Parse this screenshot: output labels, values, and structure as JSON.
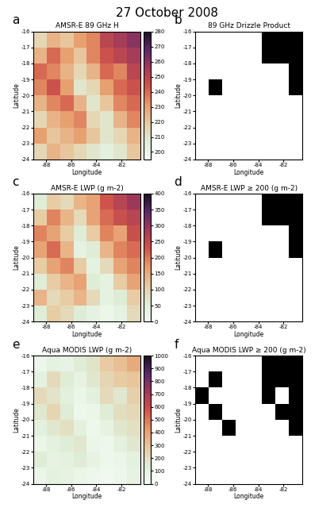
{
  "title": "27 October 2008",
  "chart_data": [
    {
      "type": "heatmap",
      "panel": "a",
      "title": "AMSR-E 89 GHz H",
      "xlabel": "Longitude",
      "ylabel": "Latitude",
      "xlim": [
        -89,
        -80.5
      ],
      "ylim": [
        -24,
        -16
      ],
      "xticks": [
        -88,
        -86,
        -84,
        -82
      ],
      "yticks": [
        -24,
        -23,
        -22,
        -21,
        -20,
        -19,
        -18,
        -17,
        -16
      ],
      "clim": [
        195,
        280
      ],
      "cticks": [
        200,
        210,
        220,
        230,
        240,
        250,
        260,
        270,
        280
      ],
      "cells": [
        [
          215,
          225,
          220,
          230,
          235,
          250,
          255,
          260
        ],
        [
          225,
          240,
          230,
          220,
          235,
          245,
          250,
          255
        ],
        [
          240,
          235,
          225,
          215,
          225,
          240,
          235,
          250
        ],
        [
          235,
          245,
          230,
          210,
          215,
          230,
          240,
          245
        ],
        [
          225,
          235,
          240,
          225,
          210,
          220,
          235,
          240
        ],
        [
          215,
          225,
          230,
          235,
          215,
          210,
          225,
          235
        ],
        [
          230,
          220,
          225,
          230,
          220,
          210,
          215,
          225
        ],
        [
          215,
          225,
          220,
          215,
          210,
          205,
          210,
          220
        ]
      ]
    },
    {
      "type": "heatmap",
      "panel": "b",
      "title": "89 GHz Drizzle Product",
      "xlabel": "Longitude",
      "ylabel": "Latitude",
      "xlim": [
        -89,
        -80.5
      ],
      "ylim": [
        -24,
        -16
      ],
      "xticks": [
        -88,
        -86,
        -84,
        -82
      ],
      "yticks": [
        -24,
        -23,
        -22,
        -21,
        -20,
        -19,
        -18,
        -17,
        -16
      ],
      "clim": [
        0,
        1
      ],
      "color": "#000000",
      "cells": [
        [
          0,
          0,
          0,
          0,
          0,
          1,
          1,
          1
        ],
        [
          0,
          0,
          0,
          0,
          0,
          1,
          1,
          1
        ],
        [
          0,
          0,
          0,
          0,
          0,
          0,
          0,
          1
        ],
        [
          0,
          1,
          0,
          0,
          0,
          0,
          0,
          1
        ],
        [
          0,
          0,
          0,
          0,
          0,
          0,
          0,
          0
        ],
        [
          0,
          0,
          0,
          0,
          0,
          0,
          0,
          0
        ],
        [
          0,
          0,
          0,
          0,
          0,
          0,
          0,
          0
        ],
        [
          0,
          0,
          0,
          0,
          0,
          0,
          0,
          0
        ]
      ]
    },
    {
      "type": "heatmap",
      "panel": "c",
      "title": "AMSR-E LWP (g m-2)",
      "xlabel": "Longitude",
      "ylabel": "Latitude",
      "xlim": [
        -89,
        -80.5
      ],
      "ylim": [
        -24,
        -16
      ],
      "xticks": [
        -88,
        -86,
        -84,
        -82
      ],
      "yticks": [
        -24,
        -23,
        -22,
        -21,
        -20,
        -19,
        -18,
        -17,
        -16
      ],
      "clim": [
        0,
        400
      ],
      "cticks": [
        0,
        50,
        100,
        150,
        200,
        250,
        300,
        350,
        400
      ],
      "cells": [
        [
          60,
          110,
          90,
          140,
          160,
          230,
          260,
          290
        ],
        [
          110,
          190,
          140,
          90,
          160,
          210,
          240,
          260
        ],
        [
          190,
          160,
          110,
          60,
          110,
          190,
          160,
          240
        ],
        [
          160,
          210,
          140,
          40,
          60,
          140,
          190,
          210
        ],
        [
          110,
          160,
          190,
          110,
          40,
          90,
          160,
          190
        ],
        [
          60,
          110,
          140,
          160,
          60,
          40,
          110,
          160
        ],
        [
          140,
          90,
          110,
          140,
          90,
          40,
          60,
          110
        ],
        [
          60,
          110,
          90,
          60,
          40,
          20,
          40,
          90
        ]
      ]
    },
    {
      "type": "heatmap",
      "panel": "d",
      "title": "AMSR-E LWP ≥ 200 (g m-2)",
      "xlabel": "Longitude",
      "ylabel": "Latitude",
      "xlim": [
        -89,
        -80.5
      ],
      "ylim": [
        -24,
        -16
      ],
      "xticks": [
        -88,
        -86,
        -84,
        -82
      ],
      "yticks": [
        -24,
        -23,
        -22,
        -21,
        -20,
        -19,
        -18,
        -17,
        -16
      ],
      "clim": [
        0,
        1
      ],
      "color": "#000000",
      "cells": [
        [
          0,
          0,
          0,
          0,
          0,
          1,
          1,
          1
        ],
        [
          0,
          0,
          0,
          0,
          0,
          1,
          1,
          1
        ],
        [
          0,
          0,
          0,
          0,
          0,
          0,
          0,
          1
        ],
        [
          0,
          1,
          0,
          0,
          0,
          0,
          0,
          1
        ],
        [
          0,
          0,
          0,
          0,
          0,
          0,
          0,
          0
        ],
        [
          0,
          0,
          0,
          0,
          0,
          0,
          0,
          0
        ],
        [
          0,
          0,
          0,
          0,
          0,
          0,
          0,
          0
        ],
        [
          0,
          0,
          0,
          0,
          0,
          0,
          0,
          0
        ]
      ]
    },
    {
      "type": "heatmap",
      "panel": "e",
      "title": "Aqua MODIS LWP (g m-2)",
      "xlabel": "Longitude",
      "ylabel": "Latitude",
      "xlim": [
        -89,
        -80.5
      ],
      "ylim": [
        -24,
        -16
      ],
      "xticks": [
        -88,
        -86,
        -84,
        -82
      ],
      "yticks": [
        -24,
        -23,
        -22,
        -21,
        -20,
        -19,
        -18,
        -17,
        -16
      ],
      "clim": [
        0,
        1000
      ],
      "cticks": [
        0,
        100,
        200,
        300,
        400,
        500,
        600,
        700,
        800,
        900,
        1000
      ],
      "cells": [
        [
          50,
          100,
          80,
          150,
          180,
          280,
          320,
          380
        ],
        [
          100,
          220,
          150,
          90,
          170,
          240,
          280,
          300
        ],
        [
          220,
          180,
          120,
          60,
          120,
          220,
          170,
          260
        ],
        [
          170,
          240,
          150,
          40,
          60,
          150,
          210,
          230
        ],
        [
          120,
          170,
          200,
          120,
          40,
          90,
          170,
          200
        ],
        [
          60,
          110,
          150,
          170,
          60,
          40,
          110,
          170
        ],
        [
          150,
          90,
          110,
          150,
          90,
          40,
          60,
          110
        ],
        [
          60,
          110,
          90,
          60,
          40,
          20,
          40,
          90
        ]
      ]
    },
    {
      "type": "heatmap",
      "panel": "f",
      "title": "Aqua MODIS LWP ≥ 200 (g m-2)",
      "xlabel": "Longitude",
      "ylabel": "Latitude",
      "xlim": [
        -89,
        -80.5
      ],
      "ylim": [
        -24,
        -16
      ],
      "xticks": [
        -88,
        -86,
        -84,
        -82
      ],
      "yticks": [
        -24,
        -23,
        -22,
        -21,
        -20,
        -19,
        -18,
        -17,
        -16
      ],
      "clim": [
        0,
        1
      ],
      "color": "#000000",
      "cells": [
        [
          0,
          0,
          0,
          0,
          0,
          1,
          1,
          1
        ],
        [
          0,
          1,
          0,
          0,
          0,
          1,
          1,
          1
        ],
        [
          1,
          0,
          0,
          0,
          0,
          1,
          0,
          1
        ],
        [
          0,
          1,
          0,
          0,
          0,
          0,
          1,
          1
        ],
        [
          0,
          0,
          1,
          0,
          0,
          0,
          0,
          1
        ],
        [
          0,
          0,
          0,
          0,
          0,
          0,
          0,
          0
        ],
        [
          0,
          0,
          0,
          0,
          0,
          0,
          0,
          0
        ],
        [
          0,
          0,
          0,
          0,
          0,
          0,
          0,
          0
        ]
      ]
    }
  ]
}
